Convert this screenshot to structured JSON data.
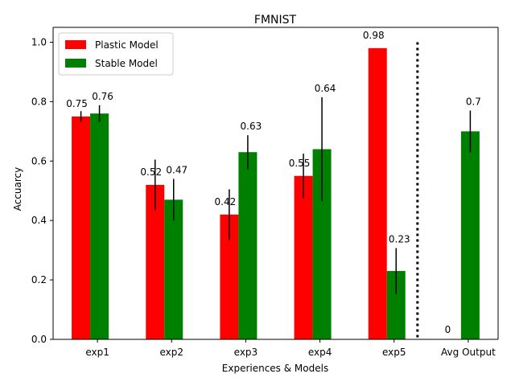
{
  "chart_data": {
    "type": "bar",
    "title": "FMNIST",
    "xlabel": "Experiences & Models",
    "ylabel": "Accuarcy",
    "categories": [
      "exp1",
      "exp2",
      "exp3",
      "exp4",
      "exp5",
      "Avg Output"
    ],
    "ylim": [
      0,
      1.05
    ],
    "yticks": [
      "0.0",
      "0.2",
      "0.4",
      "0.6",
      "0.8",
      "1.0"
    ],
    "ytick_values": [
      0.0,
      0.2,
      0.4,
      0.6,
      0.8,
      1.0
    ],
    "series": [
      {
        "name": "Plastic Model",
        "color": "#ff0000",
        "values": [
          0.75,
          0.52,
          0.42,
          0.55,
          0.98,
          0
        ],
        "labels": [
          "0.75",
          "0.52",
          "0.42",
          "0.55",
          "0.98",
          "0"
        ],
        "errors": [
          0.018,
          0.085,
          0.085,
          0.075,
          0.0,
          0.0
        ]
      },
      {
        "name": "Stable Model",
        "color": "#008000",
        "values": [
          0.76,
          0.47,
          0.63,
          0.64,
          0.23,
          0.7
        ],
        "labels": [
          "0.76",
          "0.47",
          "0.63",
          "0.64",
          "0.23",
          "0.7"
        ],
        "errors": [
          0.028,
          0.07,
          0.057,
          0.175,
          0.077,
          0.07
        ]
      }
    ],
    "separator": {
      "x_between": [
        "exp5",
        "Avg Output"
      ],
      "style": "dotted",
      "color": "#000000"
    },
    "legend": {
      "position": "top-left"
    },
    "grid": false
  }
}
